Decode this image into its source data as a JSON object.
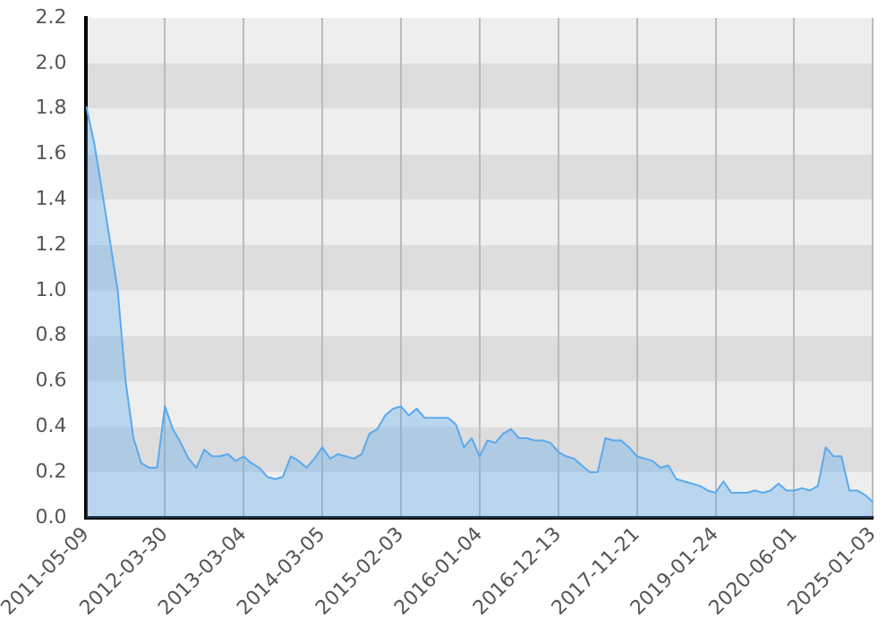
{
  "chart_data": {
    "type": "area",
    "categories": [
      "2011-05-09",
      null,
      null,
      null,
      null,
      null,
      null,
      null,
      null,
      null,
      "2012-03-30",
      null,
      null,
      null,
      null,
      null,
      null,
      null,
      null,
      null,
      "2013-03-04",
      null,
      null,
      null,
      null,
      null,
      null,
      null,
      null,
      null,
      "2014-03-05",
      null,
      null,
      null,
      null,
      null,
      null,
      null,
      null,
      null,
      "2015-02-03",
      null,
      null,
      null,
      null,
      null,
      null,
      null,
      null,
      null,
      "2016-01-04",
      null,
      null,
      null,
      null,
      null,
      null,
      null,
      null,
      null,
      "2016-12-13",
      null,
      null,
      null,
      null,
      null,
      null,
      null,
      null,
      null,
      "2017-11-21",
      null,
      null,
      null,
      null,
      null,
      null,
      null,
      null,
      null,
      "2019-01-24",
      null,
      null,
      null,
      null,
      null,
      null,
      null,
      null,
      null,
      "2020-06-01",
      null,
      null,
      null,
      null,
      null,
      null,
      null,
      null,
      null,
      "2025-01-03"
    ],
    "series": [
      {
        "color": "#5aa9ee",
        "values": [
          1.81,
          1.65,
          1.44,
          1.22,
          1.0,
          0.6,
          0.35,
          0.24,
          0.22,
          0.22,
          0.49,
          0.39,
          0.33,
          0.26,
          0.22,
          0.3,
          0.27,
          0.27,
          0.28,
          0.25,
          0.27,
          0.24,
          0.22,
          0.18,
          0.17,
          0.18,
          0.27,
          0.25,
          0.22,
          0.26,
          0.31,
          0.26,
          0.28,
          0.27,
          0.26,
          0.28,
          0.37,
          0.39,
          0.45,
          0.48,
          0.49,
          0.45,
          0.48,
          0.44,
          0.44,
          0.44,
          0.44,
          0.41,
          0.31,
          0.35,
          0.27,
          0.34,
          0.33,
          0.37,
          0.39,
          0.35,
          0.35,
          0.34,
          0.34,
          0.33,
          0.29,
          0.27,
          0.26,
          0.23,
          0.2,
          0.2,
          0.35,
          0.34,
          0.34,
          0.31,
          0.27,
          0.26,
          0.25,
          0.22,
          0.23,
          0.17,
          0.16,
          0.15,
          0.14,
          0.12,
          0.11,
          0.16,
          0.11,
          0.11,
          0.11,
          0.12,
          0.11,
          0.12,
          0.15,
          0.12,
          0.12,
          0.13,
          0.12,
          0.14,
          0.31,
          0.27,
          0.27,
          0.12,
          0.12,
          0.1,
          0.07
        ]
      }
    ],
    "ylim": [
      0,
      2.2
    ],
    "yticks": [
      {
        "value": 0,
        "label": "0.0"
      },
      {
        "value": 0.2,
        "label": "0.2"
      },
      {
        "value": 0.4,
        "label": "0.4"
      },
      {
        "value": 0.6,
        "label": "0.6"
      },
      {
        "value": 0.8,
        "label": "0.8"
      },
      {
        "value": 1,
        "label": "1.0"
      },
      {
        "value": 1.2,
        "label": "1.2"
      },
      {
        "value": 1.4,
        "label": "1.4"
      },
      {
        "value": 1.6,
        "label": "1.6"
      },
      {
        "value": 1.8,
        "label": "1.8"
      },
      {
        "value": 2,
        "label": "2.0"
      },
      {
        "value": 2.2,
        "label": "2.2"
      }
    ],
    "grid": true,
    "legend": false
  }
}
